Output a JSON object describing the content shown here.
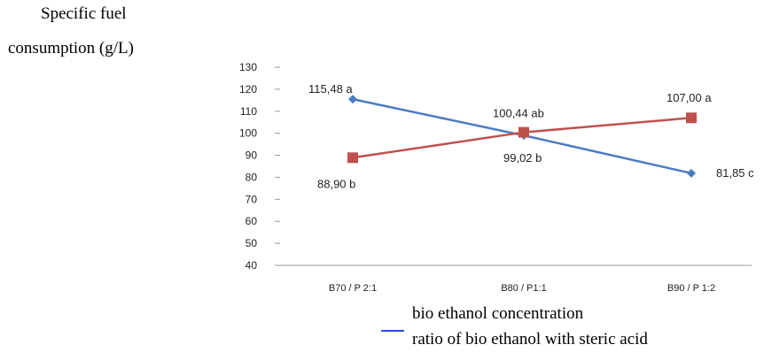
{
  "chart_data": {
    "type": "line",
    "ylabel_lines": [
      "Specific fuel",
      "consumption (g/L)"
    ],
    "categories": [
      "B70 / P 2:1",
      "B80 / P1:1",
      "B90 / P 1:2"
    ],
    "yticks": [
      "130",
      "120",
      "110",
      "100",
      "90",
      "80",
      "70",
      "60",
      "50",
      "40"
    ],
    "ylim": [
      40,
      130
    ],
    "grid": false,
    "series": [
      {
        "name": "bio ethanol concentration",
        "color": "#4a7cc2",
        "marker": "diamond",
        "values": [
          115.48,
          99.02,
          81.85
        ],
        "labels": [
          "115,48 a",
          "99,02 b",
          "81,85 c"
        ]
      },
      {
        "name": "ratio of bio ethanol with steric acid",
        "color": "#c0504d",
        "marker": "square",
        "values": [
          88.9,
          100.44,
          107.0
        ],
        "labels": [
          "88,90 b",
          "100,44 ab",
          "107,00 a"
        ]
      }
    ],
    "legend": {
      "placement": "bottom-center",
      "swatch_color": "#2a4fd6"
    }
  }
}
